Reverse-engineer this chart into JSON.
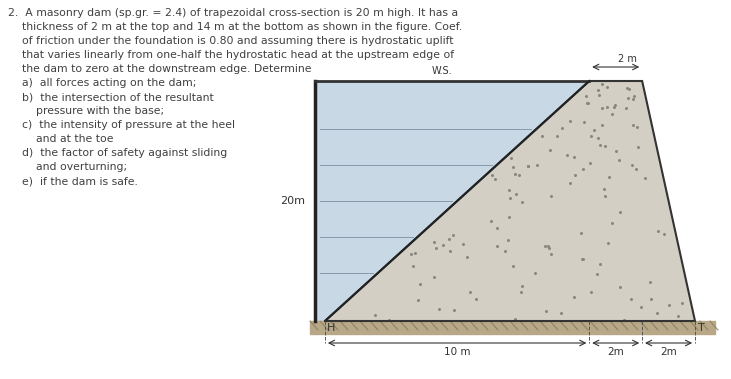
{
  "bg_color": "#ffffff",
  "text_color": "#404040",
  "diagram": {
    "heel_label": "H",
    "toe_label": "T",
    "ws_label": "W.S.",
    "height_label": "20m",
    "dim_bottom_left": "10 m",
    "dim_bottom_mid": "2m",
    "dim_bottom_right": "2m",
    "dim_top": "2 m",
    "water_color": "#c8d8e4",
    "dam_fill": "#d4cfc5",
    "ground_color": "#b8a888",
    "wall_color": "#222222",
    "dim_line_color": "#333333"
  }
}
